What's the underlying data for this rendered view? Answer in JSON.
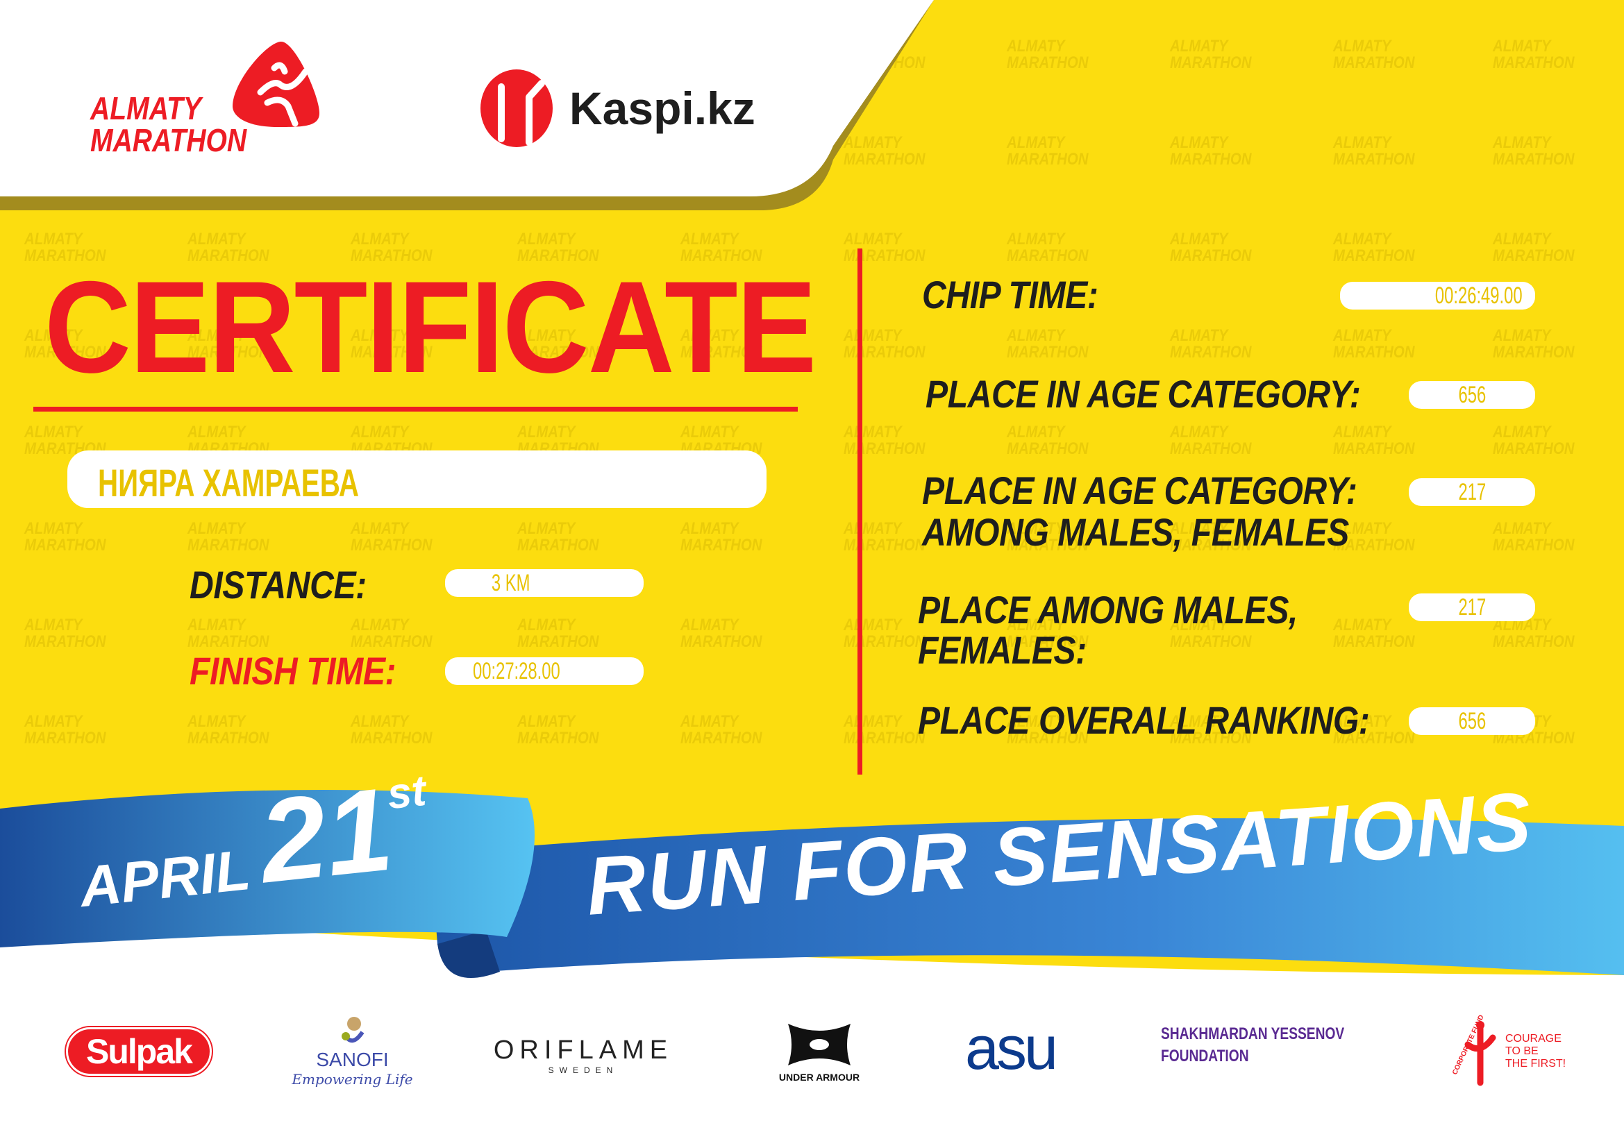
{
  "header": {
    "event_logo": {
      "line1": "ALMATY",
      "line2": "MARATHON"
    },
    "sponsor_logo": "Kaspi.kz"
  },
  "watermark": {
    "line1": "ALMATY",
    "line2": "MARATHON"
  },
  "certificate": {
    "title": "CERTIFICATE",
    "participant_name": "НИЯРА ХАМРАЕВА",
    "distance": {
      "label": "DISTANCE:",
      "value": "3 KM"
    },
    "finish_time": {
      "label": "FINISH TIME:",
      "value": "00:27:28.00"
    },
    "chip_time": {
      "label": "CHIP TIME:",
      "value": "00:26:49.00"
    },
    "place_age_category": {
      "label": "PLACE IN AGE CATEGORY:",
      "value": "656"
    },
    "place_age_category_gender": {
      "label_line1": "PLACE IN AGE CATEGORY:",
      "label_line2": "AMONG MALES, FEMALES",
      "value": "217"
    },
    "place_gender": {
      "label_line1": "PLACE AMONG MALES,",
      "label_line2": "FEMALES:",
      "value": "217"
    },
    "place_overall": {
      "label": "PLACE OVERALL RANKING:",
      "value": "656"
    }
  },
  "ribbon": {
    "month": "APRIL",
    "day": "21",
    "suffix": "st",
    "slogan": "RUN FOR SENSATIONS"
  },
  "sponsors": [
    {
      "name": "Sulpak"
    },
    {
      "name": "SANOFI",
      "tagline": "Empowering Life"
    },
    {
      "name": "ORIFLAME",
      "sub": "SWEDEN"
    },
    {
      "name": "UNDER ARMOUR"
    },
    {
      "name": "asu"
    },
    {
      "name": "SHAKHMARDAN YESSENOV",
      "sub": "FOUNDATION"
    },
    {
      "name": "COURAGE",
      "line2": "TO BE",
      "line3": "THE FIRST!",
      "arc": "CORPORATE FUND"
    }
  ],
  "colors": {
    "yellow": "#fcdd0f",
    "red": "#ed1c24",
    "blue": "#2f6fc4",
    "dark": "#1e1e1e",
    "olive": "#a38c1e"
  }
}
